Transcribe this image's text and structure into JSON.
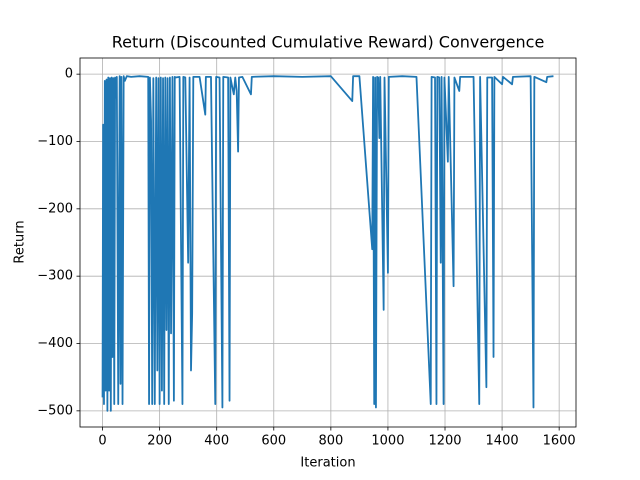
{
  "chart_data": {
    "type": "line",
    "title": "Return (Discounted Cumulative Reward) Convergence",
    "x_label": "Iteration",
    "y_label": "Return",
    "color": "#1f77b4",
    "grid": true,
    "xlim": [
      -79,
      1659
    ],
    "ylim": [
      -524,
      24
    ],
    "xticks": [
      0,
      200,
      400,
      600,
      800,
      1000,
      1200,
      1400,
      1600
    ],
    "yticks": [
      {
        "value": -500,
        "label": "−500"
      },
      {
        "value": -400,
        "label": "−400"
      },
      {
        "value": -300,
        "label": "−300"
      },
      {
        "value": -200,
        "label": "−200"
      },
      {
        "value": -100,
        "label": "−100"
      },
      0
    ],
    "x": [
      0,
      2,
      5,
      8,
      11,
      14,
      17,
      20,
      23,
      26,
      29,
      32,
      35,
      38,
      41,
      44,
      47,
      50,
      55,
      60,
      63,
      66,
      70,
      74,
      78,
      85,
      100,
      130,
      160,
      163,
      166,
      170,
      174,
      178,
      183,
      188,
      192,
      196,
      200,
      204,
      208,
      212,
      216,
      220,
      224,
      228,
      232,
      236,
      240,
      245,
      250,
      253,
      256,
      270,
      280,
      283,
      290,
      300,
      305,
      310,
      314,
      318,
      340,
      360,
      362,
      380,
      395,
      398,
      410,
      420,
      423,
      440,
      445,
      448,
      455,
      460,
      465,
      470,
      475,
      478,
      490,
      520,
      523,
      600,
      700,
      800,
      875,
      878,
      900,
      945,
      948,
      952,
      955,
      958,
      962,
      966,
      970,
      973,
      985,
      988,
      1000,
      1003,
      1050,
      1100,
      1150,
      1153,
      1165,
      1170,
      1173,
      1180,
      1185,
      1188,
      1195,
      1198,
      1210,
      1213,
      1230,
      1233,
      1250,
      1253,
      1300,
      1320,
      1323,
      1345,
      1348,
      1365,
      1370,
      1373,
      1400,
      1403,
      1435,
      1438,
      1500,
      1510,
      1513,
      1555,
      1558,
      1580
    ],
    "values": [
      -480,
      -75,
      -490,
      -10,
      -470,
      -8,
      -500,
      -5,
      -470,
      -6,
      -500,
      -5,
      -420,
      -6,
      -490,
      -5,
      -35,
      -4,
      -490,
      -3,
      -460,
      -4,
      -490,
      -3,
      -10,
      -3,
      -4,
      -3,
      -4,
      -490,
      -5,
      -70,
      -490,
      -6,
      -490,
      -5,
      -440,
      -6,
      -490,
      -5,
      -470,
      -6,
      -490,
      -5,
      -380,
      -6,
      -490,
      -5,
      -385,
      -4,
      -485,
      -4,
      -5,
      -4,
      -490,
      -4,
      -5,
      -280,
      -5,
      -440,
      -355,
      -4,
      -4,
      -60,
      -4,
      -4,
      -490,
      -4,
      -5,
      -495,
      -4,
      -5,
      -485,
      -5,
      -20,
      -30,
      -5,
      -25,
      -115,
      -5,
      -4,
      -30,
      -4,
      -3,
      -4,
      -3,
      -40,
      -3,
      -3,
      -260,
      -4,
      -490,
      -5,
      -495,
      -4,
      -5,
      -95,
      -4,
      -350,
      -5,
      -295,
      -4,
      -3,
      -4,
      -490,
      -4,
      -5,
      -490,
      -4,
      -5,
      -280,
      -4,
      -490,
      -5,
      -130,
      -4,
      -315,
      -5,
      -25,
      -4,
      -4,
      -490,
      -4,
      -465,
      -5,
      -5,
      -420,
      -4,
      -15,
      -4,
      -15,
      -4,
      -3,
      -495,
      -4,
      -12,
      -4,
      -3
    ]
  }
}
